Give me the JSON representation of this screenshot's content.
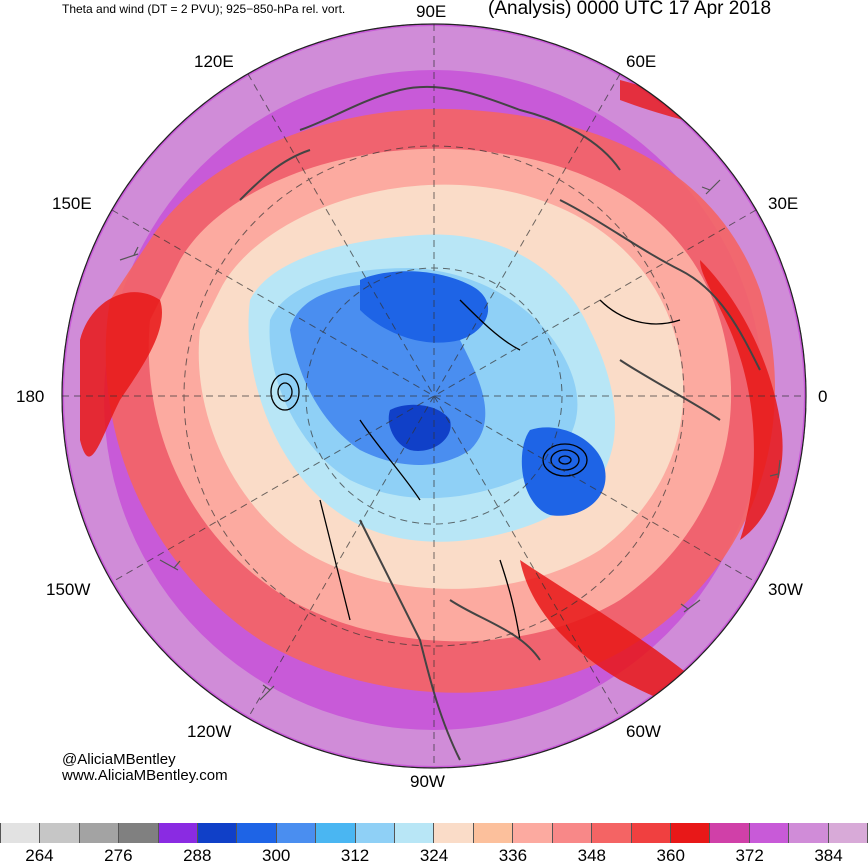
{
  "header": {
    "left_title": "Theta and wind (DT = 2 PVU); 925−850-hPa rel. vort.",
    "right_title": "(Analysis) 0000 UTC 17 Apr 2018"
  },
  "map": {
    "projection": "north-polar-stereographic",
    "longitude_labels": {
      "e90": "90E",
      "e60": "60E",
      "e30": "30E",
      "zero": "0",
      "w30": "30W",
      "w60": "60W",
      "w90": "90W",
      "w120": "120W",
      "w150": "150W",
      "dateline": "180",
      "e150": "150E",
      "e120": "120E"
    },
    "contour_fields": [
      "potential temperature on DT (shaded)",
      "wind barbs",
      "925-850-hPa relative vorticity (black contours)",
      "coastlines"
    ]
  },
  "credits": {
    "handle": "@AliciaMBentley",
    "website": "www.AliciaMBentley.com"
  },
  "colorbar": {
    "colors": [
      "#e2e2e2",
      "#c6c6c6",
      "#a3a3a3",
      "#808080",
      "#8a2be2",
      "#1040c8",
      "#1e64e6",
      "#4a8ef0",
      "#4ab6f2",
      "#8fd0f6",
      "#b8e6f6",
      "#fadcc8",
      "#fcc09c",
      "#fcaaa0",
      "#f88888",
      "#f46464",
      "#f04040",
      "#e81818",
      "#d040a8",
      "#c85ad8",
      "#d08cd8",
      "#d8aad8"
    ],
    "tick_labels": [
      "264",
      "276",
      "288",
      "300",
      "312",
      "324",
      "336",
      "348",
      "360",
      "372",
      "384"
    ]
  }
}
